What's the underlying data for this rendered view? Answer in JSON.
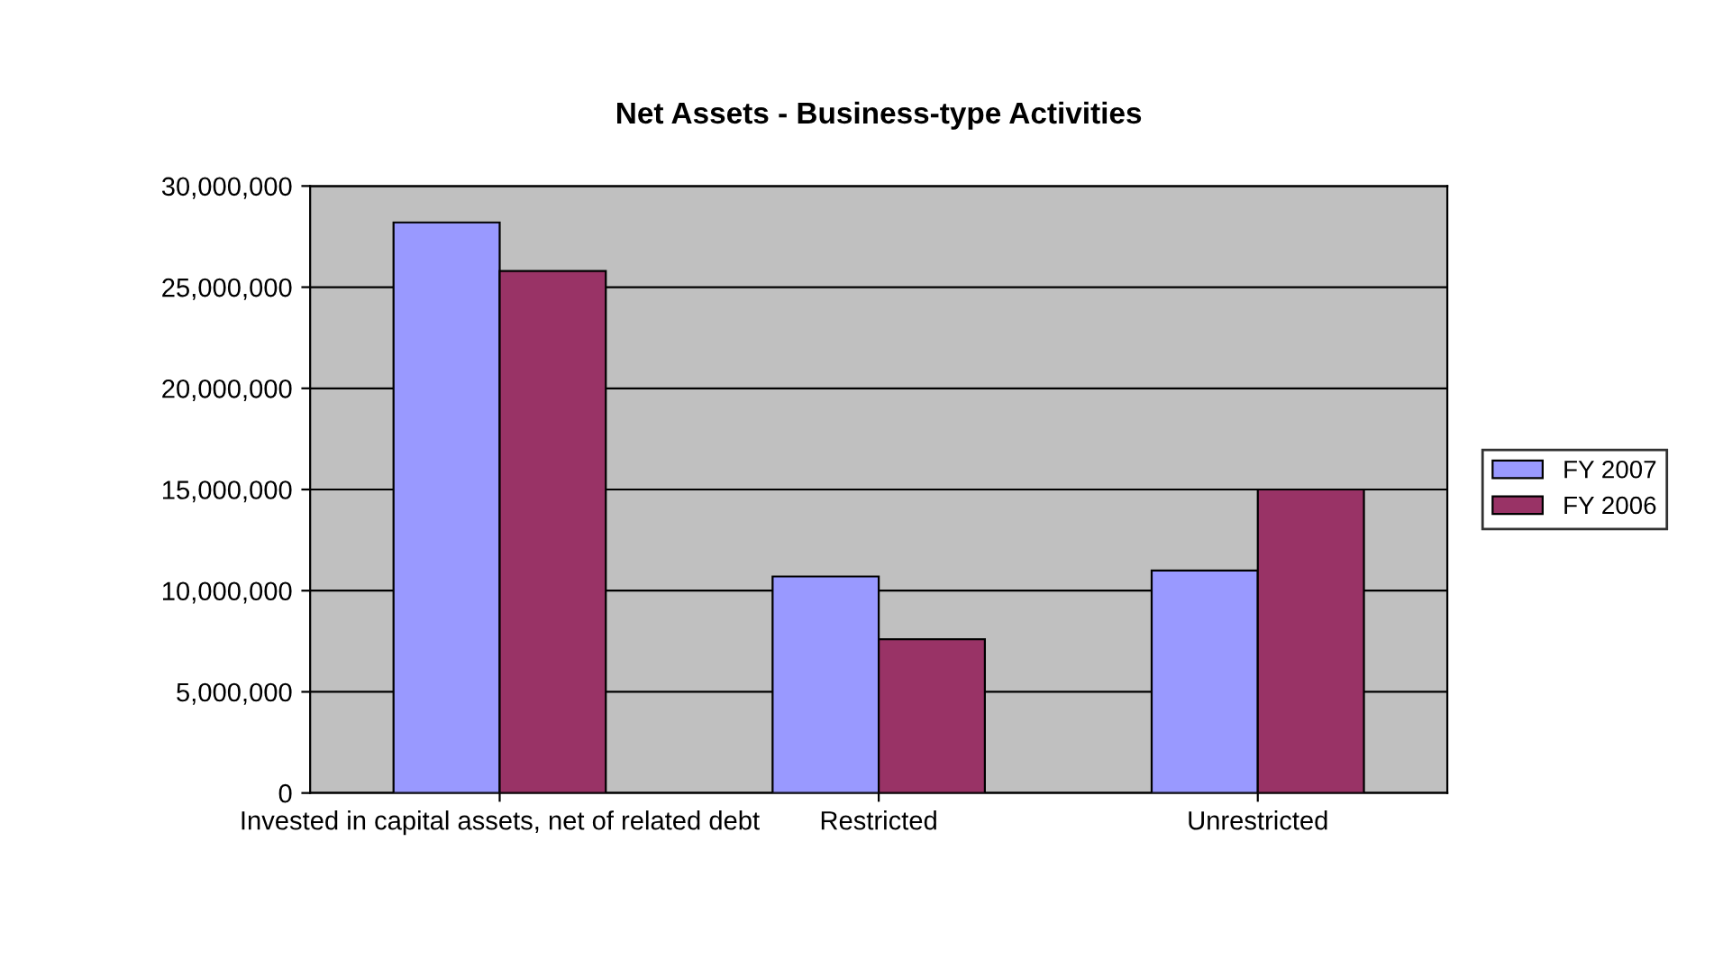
{
  "chart_data": {
    "type": "bar",
    "title": "Net Assets - Business-type Activities",
    "categories": [
      "Invested in capital assets, net of related debt",
      "Restricted",
      "Unrestricted"
    ],
    "series": [
      {
        "name": "FY 2007",
        "color": "#9999ff",
        "values": [
          28200000,
          10700000,
          11000000
        ]
      },
      {
        "name": "FY 2006",
        "color": "#993366",
        "values": [
          25800000,
          7600000,
          15000000
        ]
      }
    ],
    "ylim": [
      0,
      30000000
    ],
    "yticks": [
      {
        "value": 0,
        "label": "0"
      },
      {
        "value": 5000000,
        "label": "5,000,000"
      },
      {
        "value": 10000000,
        "label": "10,000,000"
      },
      {
        "value": 15000000,
        "label": "15,000,000"
      },
      {
        "value": 20000000,
        "label": "20,000,000"
      },
      {
        "value": 25000000,
        "label": "25,000,000"
      },
      {
        "value": 30000000,
        "label": "30,000,000"
      }
    ],
    "grid": "y",
    "legend": "right"
  }
}
